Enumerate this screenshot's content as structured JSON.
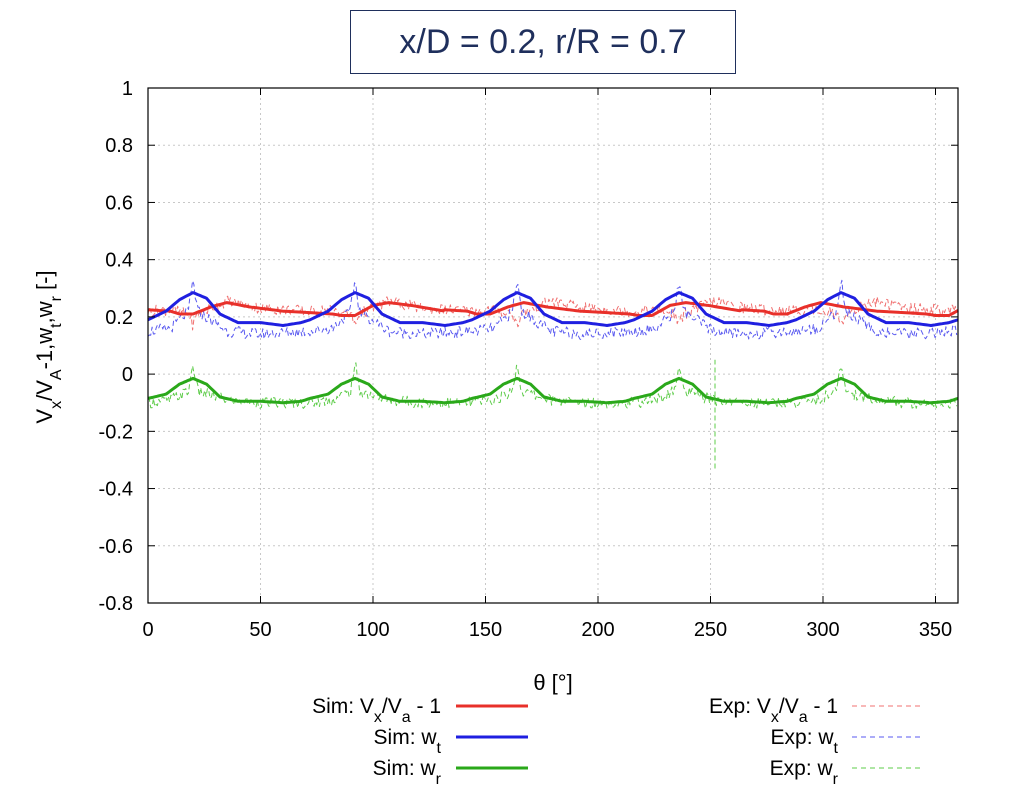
{
  "chart_data": {
    "type": "line",
    "title": "x/D = 0.2, r/R = 0.7",
    "xlabel": "θ [°]",
    "ylabel": "V_x/V_A-1,w_t,w_r [-]",
    "xlim": [
      0,
      360
    ],
    "ylim": [
      -0.8,
      1.0
    ],
    "xticks": [
      "0",
      "50",
      "100",
      "150",
      "200",
      "250",
      "300",
      "350"
    ],
    "yticks": [
      "-0.8",
      "-0.6",
      "-0.4",
      "-0.2",
      "0",
      "0.2",
      "0.4",
      "0.6",
      "0.8",
      "1"
    ],
    "grid": true,
    "legend_placement": "bottom",
    "blades": 5,
    "blade_period_deg": 72,
    "blade_peaks_deg": [
      20,
      92,
      164,
      236,
      308
    ],
    "series": [
      {
        "name": "Sim: Vx/Va - 1",
        "style": "solid",
        "color": "#e8302a",
        "x": [
          0,
          10,
          14,
          20,
          28,
          35,
          45,
          60,
          72,
          82,
          86,
          92,
          100,
          107,
          117,
          132
        ],
        "y": [
          0.225,
          0.22,
          0.21,
          0.21,
          0.235,
          0.25,
          0.235,
          0.22,
          0.215,
          0.21,
          0.205,
          0.205,
          0.24,
          0.25,
          0.24,
          0.22
        ]
      },
      {
        "name": "Sim: wt",
        "style": "solid",
        "color": "#1f1fe0",
        "x": [
          0,
          8,
          14,
          20,
          26,
          32,
          40,
          50,
          60,
          68,
          72
        ],
        "y": [
          0.19,
          0.22,
          0.26,
          0.285,
          0.265,
          0.21,
          0.18,
          0.18,
          0.17,
          0.18,
          0.19
        ]
      },
      {
        "name": "Sim: wr",
        "style": "solid",
        "color": "#2aa81a",
        "x": [
          0,
          8,
          14,
          20,
          26,
          32,
          40,
          50,
          60,
          68,
          72
        ],
        "y": [
          -0.085,
          -0.07,
          -0.035,
          -0.015,
          -0.035,
          -0.08,
          -0.095,
          -0.095,
          -0.1,
          -0.095,
          -0.085
        ]
      },
      {
        "name": "Exp: Vx/Va - 1",
        "style": "dashed",
        "color": "#f07070",
        "x": [
          0,
          10,
          18,
          20,
          22,
          35,
          50,
          72
        ],
        "y": [
          0.22,
          0.225,
          0.21,
          0.17,
          0.21,
          0.255,
          0.23,
          0.22
        ]
      },
      {
        "name": "Exp: wt",
        "style": "dashed",
        "color": "#5a5af0",
        "x": [
          0,
          10,
          18,
          20,
          22,
          35,
          50,
          72
        ],
        "y": [
          0.15,
          0.16,
          0.22,
          0.33,
          0.22,
          0.15,
          0.14,
          0.15
        ]
      },
      {
        "name": "Exp: wr",
        "style": "dashed",
        "color": "#5ecc4a",
        "x": [
          0,
          10,
          18,
          20,
          22,
          35,
          50,
          72
        ],
        "y": [
          -0.1,
          -0.09,
          -0.06,
          0.04,
          -0.06,
          -0.09,
          -0.1,
          -0.1
        ]
      }
    ]
  },
  "legend": {
    "sim_vx": "Sim: Vx/Va - 1",
    "sim_wt": "Sim: wt",
    "sim_wr": "Sim: wr",
    "exp_vx": "Exp: Vx/Va - 1",
    "exp_wt": "Exp: wt",
    "exp_wr": "Exp: wr"
  }
}
